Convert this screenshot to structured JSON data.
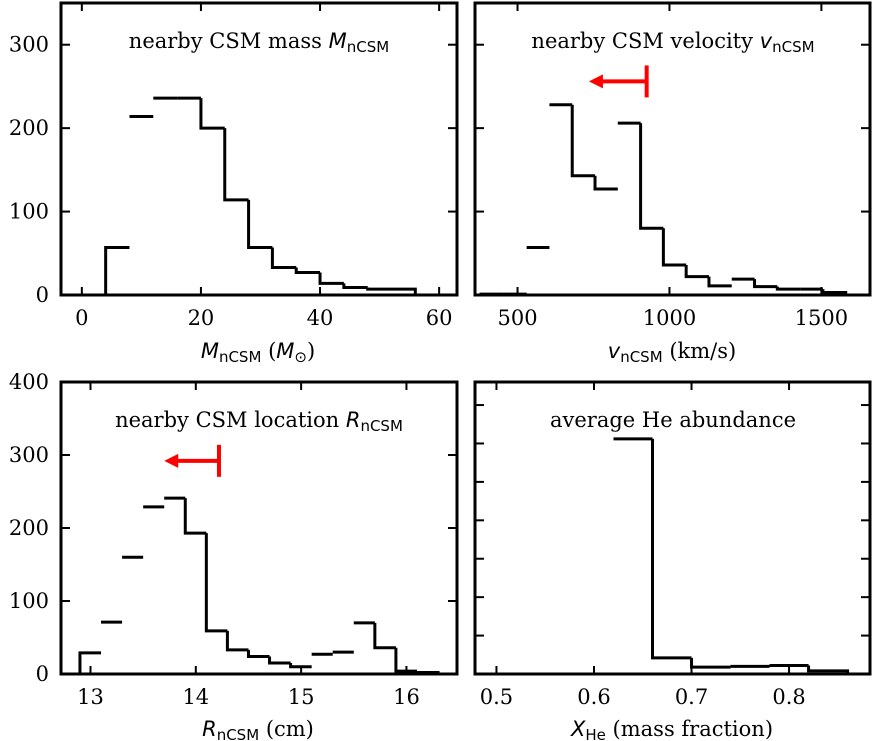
{
  "chart_data": [
    {
      "type": "bar",
      "title": "nearby CSM mass",
      "title_symbol": "M",
      "title_sub": "nCSM",
      "xlabel_symbol": "M",
      "xlabel_sub": "nCSM",
      "xlabel_unit_open": " (",
      "xlabel_unit_symbol": "M",
      "xlabel_unit_sub": "⊙",
      "xlabel_unit_close": ")",
      "xlim": [
        -3.5,
        63
      ],
      "ylim": [
        0,
        350
      ],
      "xticks": [
        0,
        20,
        40,
        60
      ],
      "xtick_labels": [
        "0",
        "20",
        "40",
        "60"
      ],
      "yticks": [
        0,
        100,
        200,
        300
      ],
      "ytick_labels": [
        "0",
        "100",
        "200",
        "300"
      ],
      "bin_edges": [
        4,
        8,
        12,
        16,
        20,
        24,
        28,
        32,
        36,
        40,
        44,
        48,
        52,
        56
      ],
      "values": [
        57,
        214,
        236,
        236,
        200,
        114,
        57,
        33,
        27,
        14,
        9,
        7,
        7
      ],
      "arrow": null
    },
    {
      "type": "bar",
      "title": "nearby CSM velocity",
      "title_symbol": "v",
      "title_sub": "nCSM",
      "xlabel_symbol": "v",
      "xlabel_sub": "nCSM",
      "xlabel_unit": " (km/s)",
      "xlim": [
        360,
        1660
      ],
      "ylim": [
        0,
        350
      ],
      "xticks": [
        500,
        1000,
        1500
      ],
      "xtick_labels": [
        "500",
        "1000",
        "1500"
      ],
      "yticks": [
        0,
        100,
        200,
        300
      ],
      "ytick_labels": [],
      "bin_edges": [
        380,
        455,
        530,
        605,
        680,
        755,
        830,
        905,
        980,
        1055,
        1130,
        1205,
        1280,
        1355,
        1430,
        1505,
        1580
      ],
      "values": [
        1,
        1,
        57,
        228,
        143,
        127,
        206,
        80,
        36,
        22,
        11,
        19,
        10,
        7,
        7,
        3
      ],
      "arrow": {
        "from": 925,
        "to": 735,
        "y": 256
      }
    },
    {
      "type": "bar",
      "title": "nearby CSM location",
      "title_symbol": "R",
      "title_sub": "nCSM",
      "xlabel_symbol": "R",
      "xlabel_sub": "nCSM",
      "xlabel_unit": " (cm)",
      "xlim": [
        12.72,
        16.48
      ],
      "ylim": [
        0,
        400
      ],
      "xticks": [
        13,
        14,
        15,
        16
      ],
      "xtick_labels": [
        "13",
        "14",
        "15",
        "16"
      ],
      "yticks": [
        0,
        100,
        200,
        300,
        400
      ],
      "ytick_labels": [
        "0",
        "100",
        "200",
        "300",
        "400"
      ],
      "bin_edges": [
        12.9,
        13.1,
        13.3,
        13.5,
        13.7,
        13.9,
        14.1,
        14.3,
        14.5,
        14.7,
        14.9,
        15.1,
        15.3,
        15.5,
        15.7,
        15.9,
        16.1,
        16.3
      ],
      "values": [
        29,
        71,
        160,
        229,
        241,
        193,
        59,
        33,
        24,
        15,
        10,
        27,
        30,
        70,
        36,
        4,
        2
      ],
      "arrow": {
        "from": 14.22,
        "to": 13.7,
        "y": 292
      }
    },
    {
      "type": "bar",
      "title": "average He abundance",
      "xlabel_symbol": "X",
      "xlabel_sub": "He",
      "xlabel_unit": " (mass fraction)",
      "xlim": [
        0.478,
        0.883
      ],
      "ylim": [
        0,
        380
      ],
      "xticks": [
        0.5,
        0.6,
        0.7,
        0.8
      ],
      "xtick_labels": [
        "0.5",
        "0.6",
        "0.7",
        "0.8"
      ],
      "yticks": [
        0,
        50,
        100,
        150,
        200,
        250,
        300,
        350
      ],
      "ytick_labels": [],
      "bin_edges": [
        0.48,
        0.52,
        0.56,
        0.6,
        0.62,
        0.66,
        0.7,
        0.74,
        0.78,
        0.82,
        0.86
      ],
      "values": [
        0,
        0,
        0,
        0,
        306,
        21,
        9,
        10,
        11,
        4
      ],
      "arrow": null
    }
  ],
  "accent": "#ff0000"
}
